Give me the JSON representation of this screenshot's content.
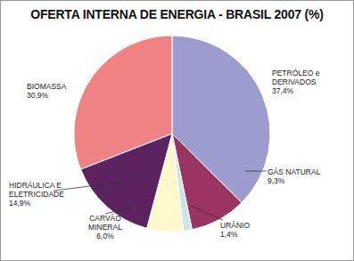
{
  "chart_data": {
    "type": "pie",
    "title": "OFERTA INTERNA DE ENERGIA - BRASIL 2007 (%)",
    "categories": [
      "PETRÓLEO e DERIVADOS",
      "GÁS NATURAL",
      "URÂNIO",
      "CARVÃO MINERAL",
      "HIDRÁULICA E ELETRICIDADE",
      "BIOMASSA"
    ],
    "values": [
      37.4,
      9.3,
      1.4,
      6.0,
      14.9,
      30.9
    ],
    "value_labels": [
      "37,4%",
      "9,3%",
      "1,4%",
      "6,0%",
      "14,9%",
      "30,9%"
    ],
    "colors": [
      "#9c9ccf",
      "#9b3462",
      "#c9e7e6",
      "#fff8cc",
      "#5c2360",
      "#f08283"
    ],
    "data_labels": true
  }
}
